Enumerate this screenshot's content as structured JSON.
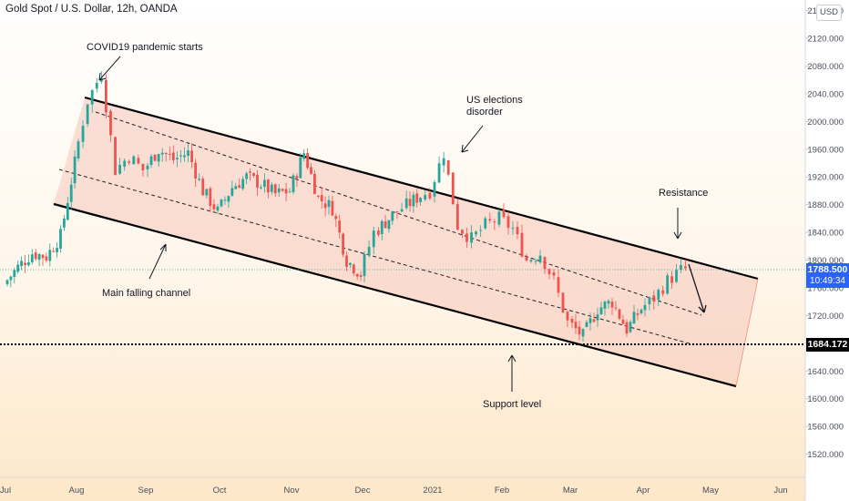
{
  "title": "Gold Spot / U.S. Dollar, 12h, OANDA",
  "currency_badge": "USD",
  "chart_data": {
    "type": "candlestick",
    "symbol": "XAUUSD",
    "ylim": [
      1480,
      2170
    ],
    "y_ticks": [
      "2160.000",
      "2120.000",
      "2080.000",
      "2040.000",
      "2000.000",
      "1960.000",
      "1920.000",
      "1880.000",
      "1840.000",
      "1800.000",
      "1760.000",
      "1720.000",
      "1680.000",
      "1640.000",
      "1600.000",
      "1560.000",
      "1520.000"
    ],
    "x_ticks": [
      "Jul",
      "Aug",
      "Sep",
      "Oct",
      "Nov",
      "Dec",
      "2021",
      "Feb",
      "Mar",
      "Apr",
      "May",
      "Jun"
    ],
    "price_path": [
      [
        "Jul",
        1765
      ],
      [
        "Jul",
        1790
      ],
      [
        "Jul",
        1810
      ],
      [
        "Jul",
        1805
      ],
      [
        "Jul",
        1835
      ],
      [
        "Aug",
        1940
      ],
      [
        "Aug",
        2030
      ],
      [
        "Aug",
        2070
      ],
      [
        "Aug",
        1930
      ],
      [
        "Aug",
        1950
      ],
      [
        "Sep",
        1930
      ],
      [
        "Sep",
        1960
      ],
      [
        "Sep",
        1945
      ],
      [
        "Sep",
        1955
      ],
      [
        "Sep",
        1900
      ],
      [
        "Oct",
        1870
      ],
      [
        "Oct",
        1905
      ],
      [
        "Oct",
        1920
      ],
      [
        "Oct",
        1910
      ],
      [
        "Oct",
        1895
      ],
      [
        "Nov",
        1900
      ],
      [
        "Nov",
        1955
      ],
      [
        "Nov",
        1890
      ],
      [
        "Nov",
        1875
      ],
      [
        "Nov",
        1800
      ],
      [
        "Dec",
        1780
      ],
      [
        "Dec",
        1840
      ],
      [
        "Dec",
        1860
      ],
      [
        "Dec",
        1875
      ],
      [
        "Dec",
        1890
      ],
      [
        "2021",
        1900
      ],
      [
        "2021",
        1955
      ],
      [
        "2021",
        1850
      ],
      [
        "2021",
        1830
      ],
      [
        "2021",
        1850
      ],
      [
        "Feb",
        1860
      ],
      [
        "Feb",
        1845
      ],
      [
        "Feb",
        1800
      ],
      [
        "Feb",
        1810
      ],
      [
        "Feb",
        1770
      ],
      [
        "Mar",
        1710
      ],
      [
        "Mar",
        1690
      ],
      [
        "Mar",
        1730
      ],
      [
        "Mar",
        1740
      ],
      [
        "Mar",
        1700
      ],
      [
        "Apr",
        1730
      ],
      [
        "Apr",
        1745
      ],
      [
        "Apr",
        1770
      ],
      [
        "Apr",
        1785
      ],
      [
        "Apr",
        1790
      ]
    ],
    "channel": {
      "upper": [
        [
          "Aug",
          2032
        ],
        [
          "May",
          1770
        ]
      ],
      "lower": [
        [
          "Aug",
          1880
        ],
        [
          "May",
          1620
        ]
      ]
    },
    "current_price": "1788.500",
    "countdown": "10:49:34",
    "support_price": "1684.172",
    "annotations": [
      "COVID19 pandemic starts",
      "US elections disorder",
      "Resistance",
      "Main falling channel",
      "Support level"
    ],
    "colors": {
      "up": "#26a69a",
      "down": "#ef5350",
      "channel_fill": "#f5c9bd",
      "price_tag": "#2962ff"
    }
  },
  "annotations": {
    "covid": "COVID19 pandemic starts",
    "elections_line1": "US elections",
    "elections_line2": "disorder",
    "resistance": "Resistance",
    "channel": "Main falling channel",
    "support": "Support level"
  },
  "price_tag": {
    "price": "1788.500",
    "countdown": "10:49:34"
  },
  "support_tag": "1684.172"
}
